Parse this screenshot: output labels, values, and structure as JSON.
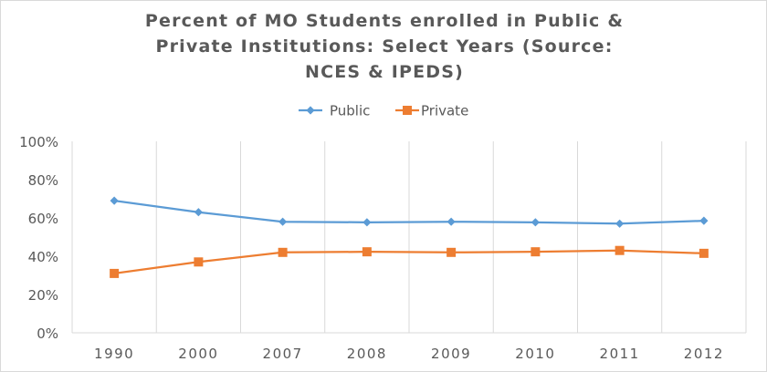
{
  "chart_data": {
    "type": "line",
    "title": "Percent of MO Students enrolled in Public &\nPrivate Institutions: Select Years (Source:\nNCES & IPEDS)",
    "categories": [
      "1990",
      "2000",
      "2007",
      "2008",
      "2009",
      "2010",
      "2011",
      "2012"
    ],
    "series": [
      {
        "name": "Public",
        "color": "#5b9bd5",
        "marker": "diamond",
        "values": [
          69,
          63,
          58,
          57.7,
          58,
          57.7,
          57,
          58.5
        ]
      },
      {
        "name": "Private",
        "color": "#ed7d31",
        "marker": "square",
        "values": [
          31,
          37,
          42,
          42.3,
          42,
          42.3,
          43,
          41.5
        ]
      }
    ],
    "ylim": [
      0,
      100
    ],
    "yticks": [
      0,
      20,
      40,
      60,
      80,
      100
    ],
    "ytick_labels": [
      "0%",
      "20%",
      "40%",
      "60%",
      "80%",
      "100%"
    ],
    "grid": "vertical",
    "legend": "top-center",
    "xlabel": "",
    "ylabel": ""
  }
}
